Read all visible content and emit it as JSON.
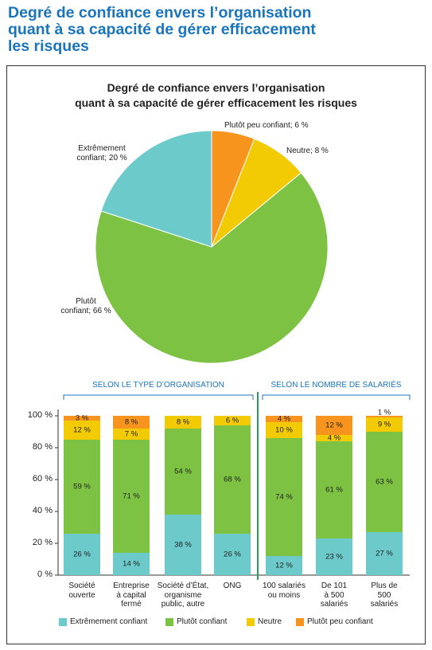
{
  "title": "Degré de confiance envers l’organisation\nquant à sa capacité de gérer efficacement\nles risques",
  "chart_data": [
    {
      "type": "pie",
      "title": "Degré de confiance envers l’organisation\nquant à sa capacité de gérer efficacement les risques",
      "categories": [
        "Plutôt peu confiant",
        "Neutre",
        "Plutôt confiant",
        "Extrêmement confiant"
      ],
      "values": [
        6,
        8,
        66,
        20
      ],
      "labels": [
        "Plutôt peu confiant; 6 %",
        "Neutre; 8 %",
        "Plutôt\nconfiant; 66 %",
        "Extrêmement\nconfiant; 20 %"
      ],
      "colors": [
        "#f7941d",
        "#f2cb05",
        "#7dc243",
        "#6ccaca"
      ]
    },
    {
      "type": "stacked-bar",
      "groups": [
        "SELON LE TYPE D’ORGANISATION",
        "SELON LE NOMBRE DE SALARIÉS"
      ],
      "categories": [
        "Société\nouverte",
        "Entreprise\nà capital\nfermé",
        "Société d’État,\norganisme\npublic, autre",
        "ONG",
        "100 salariés\nou moins",
        "De 101\nà 500\nsalariés",
        "Plus de\n500\nsalariés"
      ],
      "series": [
        {
          "name": "Extrêmement confiant",
          "color": "#6ccaca",
          "values": [
            26,
            14,
            38,
            26,
            12,
            23,
            27
          ],
          "value_labels": [
            "26 %",
            "14 %",
            "38 %",
            "26 %",
            "12 %",
            "23 %",
            "27 %"
          ]
        },
        {
          "name": "Plutôt confiant",
          "color": "#7dc243",
          "values": [
            59,
            71,
            54,
            68,
            74,
            61,
            63
          ],
          "value_labels": [
            "59 %",
            "71 %",
            "54 %",
            "68 %",
            "74 %",
            "61 %",
            "63 %"
          ]
        },
        {
          "name": "Neutre",
          "color": "#f2cb05",
          "values": [
            12,
            7,
            8,
            6,
            10,
            4,
            9
          ],
          "value_labels": [
            "12 %",
            "7 %",
            "8 %",
            "6 %",
            "10 %",
            "4 %",
            "9 %"
          ]
        },
        {
          "name": "Plutôt peu confiant",
          "color": "#f7941d",
          "values": [
            3,
            8,
            null,
            null,
            4,
            12,
            1
          ],
          "value_labels": [
            "3 %",
            "8 %",
            null,
            null,
            "4 %",
            "12 %",
            "1 %"
          ]
        }
      ],
      "ylim": [
        0,
        100
      ],
      "yticks": [
        {
          "value": 0,
          "label": "0 %"
        },
        {
          "value": 20,
          "label": "20 %"
        },
        {
          "value": 40,
          "label": "40 %"
        },
        {
          "value": 60,
          "label": "60 %"
        },
        {
          "value": 80,
          "label": "80 %"
        },
        {
          "value": 100,
          "label": "100 %"
        }
      ]
    }
  ]
}
